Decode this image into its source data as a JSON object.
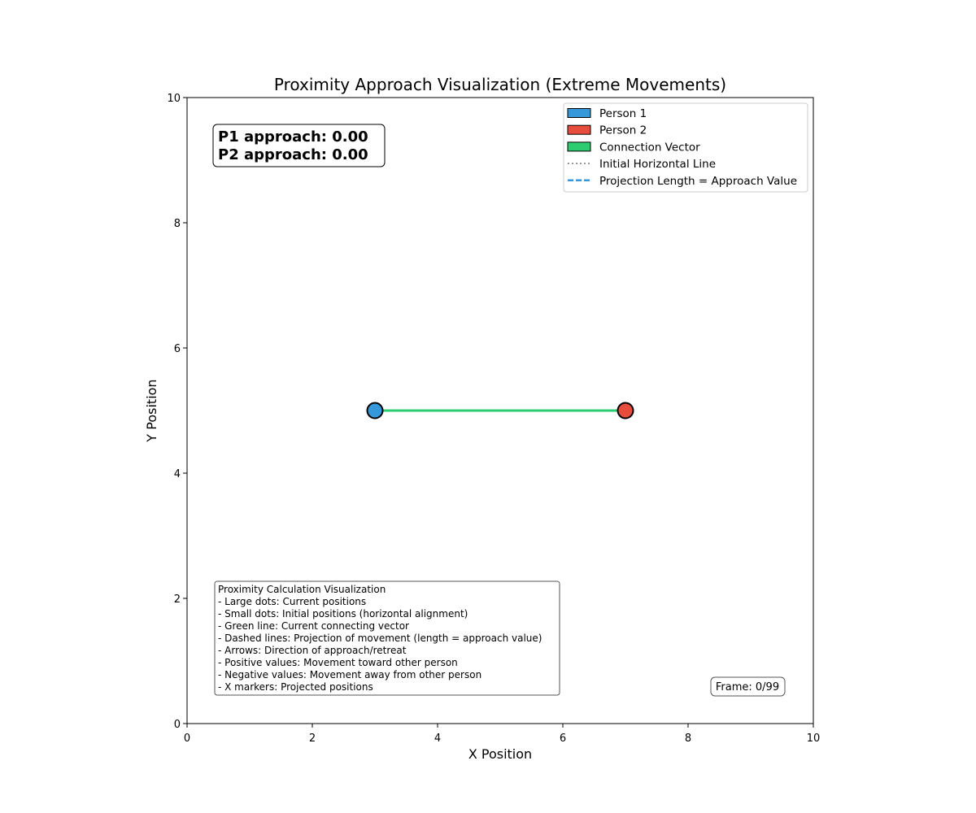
{
  "chart_data": {
    "type": "scatter",
    "title": "Proximity Approach Visualization (Extreme Movements)",
    "xlabel": "X Position",
    "ylabel": "Y Position",
    "xlim": [
      0,
      10
    ],
    "ylim": [
      0,
      10
    ],
    "xticks": [
      "0",
      "2",
      "4",
      "6",
      "8",
      "10"
    ],
    "yticks": [
      "0",
      "2",
      "4",
      "6",
      "8",
      "10"
    ],
    "grid": false,
    "legend_position": "top-right",
    "legend": [
      {
        "label": "Person 1",
        "kind": "patch",
        "color": "#3498db"
      },
      {
        "label": "Person 2",
        "kind": "patch",
        "color": "#e74c3c"
      },
      {
        "label": "Connection Vector",
        "kind": "patch",
        "color": "#2ecc71"
      },
      {
        "label": "Initial Horizontal Line",
        "kind": "dotted",
        "color": "#808080"
      },
      {
        "label": "Projection Length = Approach Value",
        "kind": "dashed",
        "color": "#3498db"
      }
    ],
    "points": [
      {
        "name": "Person 1",
        "x": 3,
        "y": 5,
        "color": "#3498db"
      },
      {
        "name": "Person 2",
        "x": 7,
        "y": 5,
        "color": "#e74c3c"
      }
    ],
    "connection": {
      "x": [
        3,
        7
      ],
      "y": [
        5,
        5
      ],
      "color": "#2ecc71"
    }
  },
  "approach": {
    "p1": "P1 approach: 0.00",
    "p2": "P2 approach: 0.00"
  },
  "info_lines": [
    "Proximity Calculation Visualization",
    "- Large dots: Current positions",
    "- Small dots: Initial positions (horizontal alignment)",
    "- Green line: Current connecting vector",
    "- Dashed lines: Projection of movement (length = approach value)",
    "- Arrows: Direction of approach/retreat",
    "- Positive values: Movement toward other person",
    "- Negative values: Movement away from other person",
    "- X markers: Projected positions"
  ],
  "frame": "Frame: 0/99"
}
